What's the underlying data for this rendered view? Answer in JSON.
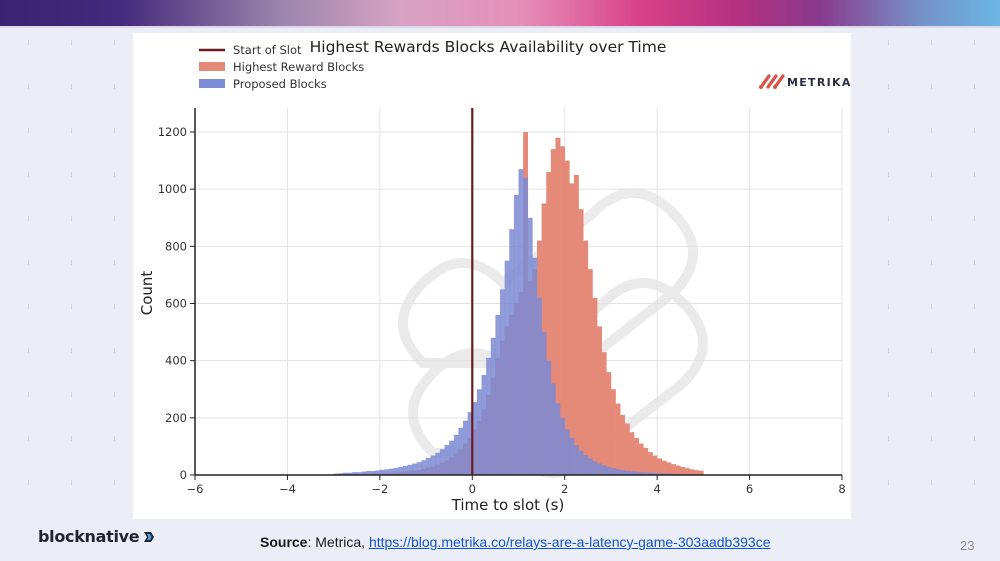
{
  "slide": {
    "page_number": "23",
    "source_label": "Source",
    "source_text": ": Metrica, ",
    "source_link": "https://blog.metrika.co/relays-are-a-latency-game-303aadb393ce",
    "footer_logo": "blocknative",
    "chart_brand": "METRIKA"
  },
  "colors": {
    "highest_reward": "#e58a78",
    "proposed": "#7d8ad4",
    "overlap": "#8576b8",
    "start_of_slot": "#6b1a1f",
    "brand_red": "#d9534a"
  },
  "chart_data": {
    "type": "bar",
    "subtype": "histogram",
    "title": "Highest Rewards Blocks Availability over Time",
    "xlabel": "Time to slot (s)",
    "ylabel": "Count",
    "xlim": [
      -6,
      8
    ],
    "ylim": [
      0,
      1280
    ],
    "x_ticks": [
      -6,
      -4,
      -2,
      0,
      2,
      4,
      6,
      8
    ],
    "x_tick_labels": [
      "−6",
      "−4",
      "−2",
      "0",
      "2",
      "4",
      "6",
      "8"
    ],
    "y_ticks": [
      0,
      200,
      400,
      600,
      800,
      1000,
      1200
    ],
    "grid": true,
    "legend": {
      "position": "upper left",
      "entries": [
        "Start of Slot",
        "Highest Reward Blocks",
        "Proposed Blocks"
      ]
    },
    "annotations": [
      {
        "type": "vline",
        "x": 0,
        "label": "Start of Slot"
      }
    ],
    "bin_start": -3.0,
    "bin_width": 0.1,
    "series": [
      {
        "name": "Proposed Blocks",
        "values": [
          5,
          6,
          8,
          8,
          10,
          10,
          12,
          14,
          14,
          16,
          18,
          20,
          22,
          25,
          28,
          32,
          36,
          40,
          45,
          52,
          60,
          68,
          78,
          90,
          105,
          120,
          140,
          165,
          190,
          220,
          255,
          300,
          350,
          410,
          480,
          560,
          650,
          750,
          860,
          980,
          1070,
          1040,
          900,
          760,
          620,
          500,
          400,
          320,
          250,
          200,
          160,
          130,
          105,
          85,
          70,
          58,
          48,
          40,
          34,
          28,
          24,
          20,
          18,
          15,
          13,
          12,
          10,
          9,
          8,
          7,
          6,
          5,
          5,
          4,
          4,
          3,
          3,
          3,
          2,
          2
        ]
      },
      {
        "name": "Highest Reward Blocks",
        "values": [
          2,
          2,
          2,
          3,
          3,
          3,
          4,
          4,
          5,
          5,
          6,
          7,
          8,
          9,
          10,
          12,
          14,
          16,
          18,
          22,
          26,
          30,
          36,
          44,
          52,
          62,
          75,
          90,
          110,
          130,
          160,
          190,
          230,
          280,
          340,
          410,
          470,
          520,
          560,
          600,
          640,
          1200,
          680,
          720,
          820,
          950,
          1060,
          1140,
          1180,
          1150,
          1100,
          1020,
          1050,
          930,
          820,
          720,
          620,
          520,
          430,
          360,
          300,
          250,
          210,
          180,
          150,
          130,
          110,
          95,
          80,
          68,
          58,
          50,
          44,
          38,
          33,
          28,
          24,
          20,
          17,
          15
        ]
      }
    ]
  }
}
